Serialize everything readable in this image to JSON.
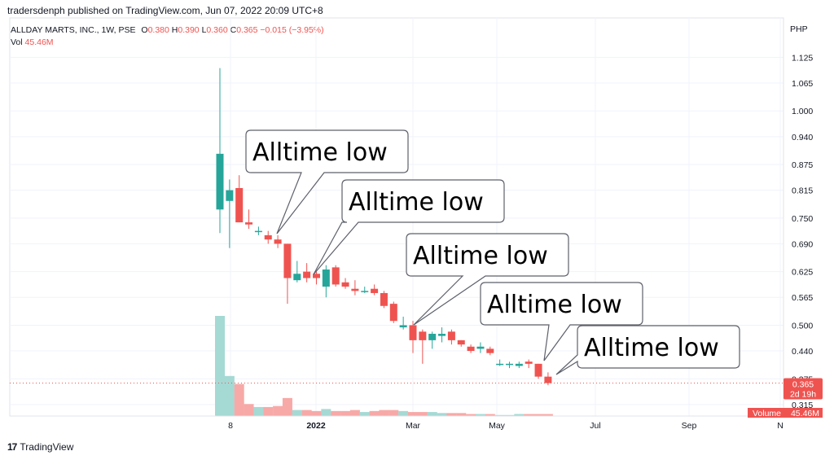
{
  "header": {
    "publisher": "tradersdenph published on TradingView.com, Jun 07, 2022 20:09 UTC+8",
    "symbol": "ALLDAY MARTS, INC., 1W, PSE",
    "open_label": "O",
    "open_value": "0.380",
    "high_label": "H",
    "high_value": "0.390",
    "low_label": "L",
    "low_value": "0.360",
    "close_label": "C",
    "close_value": "0.365",
    "change": "−0.015 (−3.95%)",
    "vol_label": "Vol",
    "vol_value": "45.46M",
    "currency": "PHP"
  },
  "footer": {
    "brand": "TradingView",
    "logo": "17"
  },
  "colors": {
    "up": "#26a69a",
    "down": "#ef5350",
    "vol_up": "#a5d9d4",
    "vol_down": "#f7a9a7",
    "grid": "#f0f3fa",
    "text": "#131722"
  },
  "price_badge": {
    "value": "0.365",
    "countdown": "2d 19h"
  },
  "volume_badge": {
    "label": "Volume",
    "value": "45.46M"
  },
  "annotations": [
    "Alltime low",
    "Alltime low",
    "Alltime low",
    "Alltime low",
    "Alltime low"
  ],
  "chart_data": {
    "type": "candlestick",
    "interval": "1W",
    "ylim": [
      0.29,
      1.16
    ],
    "y_ticks": [
      "1.125",
      "1.065",
      "1.000",
      "0.940",
      "0.875",
      "0.815",
      "0.750",
      "0.690",
      "0.625",
      "0.565",
      "0.500",
      "0.440",
      "0.375",
      "0.315"
    ],
    "x_ticks": [
      "8",
      "2022",
      "Mar",
      "May",
      "Jul",
      "Sep",
      "N"
    ],
    "grid": true,
    "candles": [
      {
        "o": 0.77,
        "h": 1.1,
        "l": 0.715,
        "c": 0.9,
        "v": 100
      },
      {
        "o": 0.79,
        "h": 0.84,
        "l": 0.68,
        "c": 0.815,
        "v": 40
      },
      {
        "o": 0.82,
        "h": 0.85,
        "l": 0.74,
        "c": 0.74,
        "v": 32
      },
      {
        "o": 0.74,
        "h": 0.77,
        "l": 0.725,
        "c": 0.735,
        "v": 12
      },
      {
        "o": 0.72,
        "h": 0.73,
        "l": 0.71,
        "c": 0.72,
        "v": 9
      },
      {
        "o": 0.71,
        "h": 0.72,
        "l": 0.69,
        "c": 0.7,
        "v": 9
      },
      {
        "o": 0.7,
        "h": 0.71,
        "l": 0.68,
        "c": 0.69,
        "v": 10
      },
      {
        "o": 0.69,
        "h": 0.69,
        "l": 0.55,
        "c": 0.61,
        "v": 18
      },
      {
        "o": 0.605,
        "h": 0.65,
        "l": 0.6,
        "c": 0.62,
        "v": 6
      },
      {
        "o": 0.625,
        "h": 0.645,
        "l": 0.6,
        "c": 0.61,
        "v": 6
      },
      {
        "o": 0.62,
        "h": 0.625,
        "l": 0.595,
        "c": 0.61,
        "v": 5
      },
      {
        "o": 0.59,
        "h": 0.64,
        "l": 0.565,
        "c": 0.63,
        "v": 7
      },
      {
        "o": 0.635,
        "h": 0.64,
        "l": 0.59,
        "c": 0.595,
        "v": 5
      },
      {
        "o": 0.6,
        "h": 0.61,
        "l": 0.585,
        "c": 0.59,
        "v": 5
      },
      {
        "o": 0.585,
        "h": 0.605,
        "l": 0.57,
        "c": 0.58,
        "v": 6
      },
      {
        "o": 0.58,
        "h": 0.59,
        "l": 0.575,
        "c": 0.58,
        "v": 4
      },
      {
        "o": 0.585,
        "h": 0.595,
        "l": 0.57,
        "c": 0.575,
        "v": 5
      },
      {
        "o": 0.575,
        "h": 0.58,
        "l": 0.54,
        "c": 0.545,
        "v": 6
      },
      {
        "o": 0.55,
        "h": 0.555,
        "l": 0.505,
        "c": 0.51,
        "v": 6
      },
      {
        "o": 0.495,
        "h": 0.52,
        "l": 0.49,
        "c": 0.5,
        "v": 5
      },
      {
        "o": 0.5,
        "h": 0.51,
        "l": 0.435,
        "c": 0.465,
        "v": 4
      },
      {
        "o": 0.485,
        "h": 0.49,
        "l": 0.41,
        "c": 0.465,
        "v": 4
      },
      {
        "o": 0.465,
        "h": 0.485,
        "l": 0.445,
        "c": 0.48,
        "v": 4
      },
      {
        "o": 0.475,
        "h": 0.495,
        "l": 0.46,
        "c": 0.48,
        "v": 3
      },
      {
        "o": 0.485,
        "h": 0.49,
        "l": 0.455,
        "c": 0.465,
        "v": 3
      },
      {
        "o": 0.465,
        "h": 0.465,
        "l": 0.45,
        "c": 0.455,
        "v": 3
      },
      {
        "o": 0.45,
        "h": 0.455,
        "l": 0.435,
        "c": 0.44,
        "v": 2
      },
      {
        "o": 0.445,
        "h": 0.46,
        "l": 0.435,
        "c": 0.45,
        "v": 2
      },
      {
        "o": 0.445,
        "h": 0.45,
        "l": 0.43,
        "c": 0.435,
        "v": 2
      },
      {
        "o": 0.41,
        "h": 0.42,
        "l": 0.405,
        "c": 0.41,
        "v": 1
      },
      {
        "o": 0.41,
        "h": 0.415,
        "l": 0.4,
        "c": 0.41,
        "v": 1
      },
      {
        "o": 0.405,
        "h": 0.415,
        "l": 0.4,
        "c": 0.41,
        "v": 2
      },
      {
        "o": 0.415,
        "h": 0.42,
        "l": 0.4,
        "c": 0.41,
        "v": 2
      },
      {
        "o": 0.41,
        "h": 0.41,
        "l": 0.375,
        "c": 0.38,
        "v": 2
      },
      {
        "o": 0.38,
        "h": 0.39,
        "l": 0.36,
        "c": 0.365,
        "v": 2
      }
    ]
  }
}
